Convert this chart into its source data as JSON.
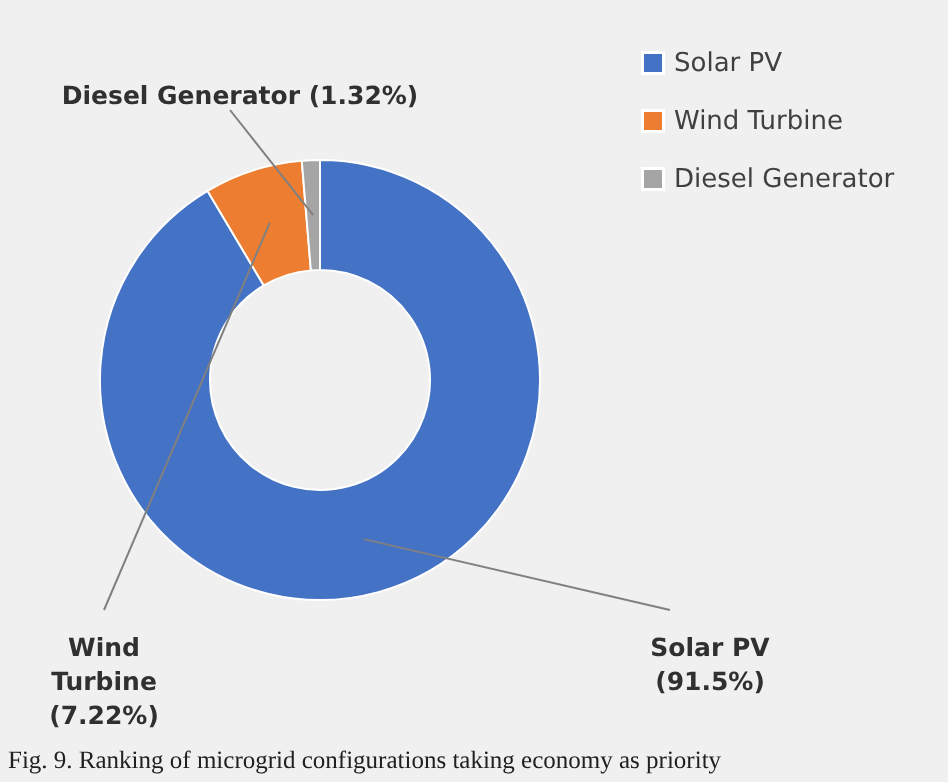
{
  "chart_data": {
    "type": "donut",
    "categories": [
      "Solar PV",
      "Wind Turbine",
      "Diesel Generator"
    ],
    "values": [
      91.5,
      7.22,
      1.32
    ],
    "colors": [
      "#4472c4",
      "#ed7d31",
      "#a5a5a5"
    ],
    "value_labels": [
      "Solar PV\n(91.5%)",
      "Wind\nTurbine\n(7.22%)",
      "Diesel Generator (1.32%)"
    ],
    "legend": "top right",
    "annotations": [
      "Fig. 9.  Ranking of microgrid configurations taking economy as priority"
    ]
  }
}
